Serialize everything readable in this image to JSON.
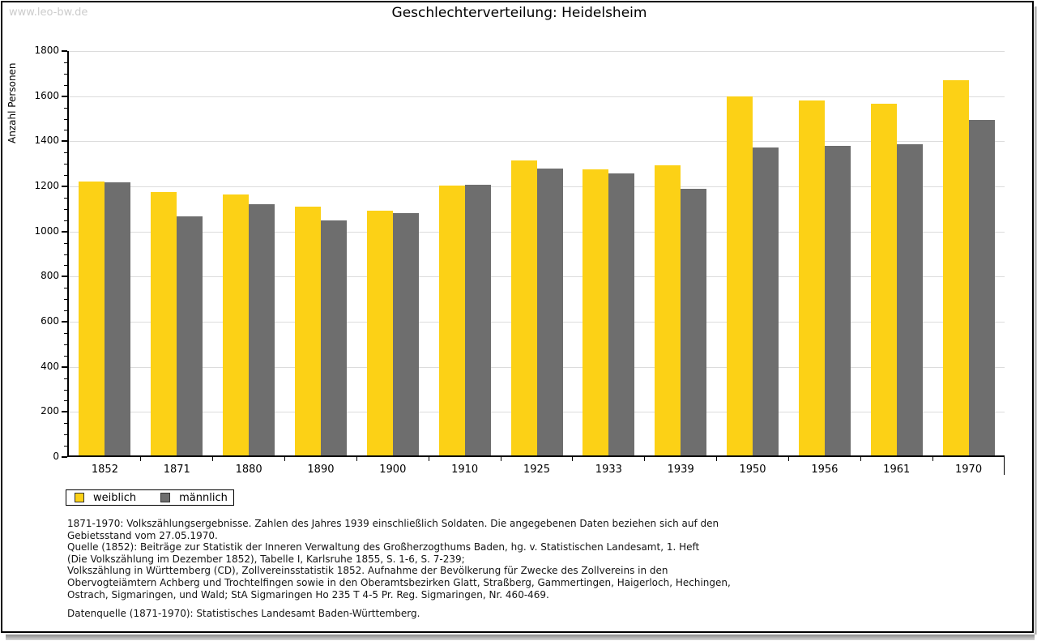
{
  "page": {
    "watermark": "www.leo-bw.de",
    "title": "Geschlechterverteilung: Heidelsheim"
  },
  "chart_data": {
    "type": "bar",
    "title": "Geschlechterverteilung: Heidelsheim",
    "xlabel": "",
    "ylabel": "Anzahl Personen",
    "categories": [
      "1852",
      "1871",
      "1880",
      "1890",
      "1900",
      "1910",
      "1925",
      "1933",
      "1939",
      "1950",
      "1956",
      "1961",
      "1970"
    ],
    "series": [
      {
        "name": "weiblich",
        "color": "#fcd116",
        "values": [
          1215,
          1168,
          1156,
          1103,
          1085,
          1197,
          1307,
          1267,
          1285,
          1590,
          1573,
          1560,
          1665
        ]
      },
      {
        "name": "männlich",
        "color": "#6e6e6e",
        "values": [
          1211,
          1061,
          1114,
          1042,
          1076,
          1201,
          1272,
          1251,
          1183,
          1365,
          1372,
          1379,
          1488
        ]
      }
    ],
    "ylim": [
      0,
      1800
    ],
    "ytick_interval": 200,
    "y_minor_tick_interval": 50,
    "grid": true,
    "legend_position": "bottom-left",
    "colors": {
      "grid": "#dcdcdc",
      "axis": "#000000",
      "watermark": "#cccccc"
    }
  },
  "footer": {
    "lines": [
      "1871-1970: Volkszählungsergebnisse. Zahlen des Jahres 1939 einschließlich Soldaten. Die angegebenen Daten beziehen sich auf den",
      "Gebietsstand vom 27.05.1970.",
      "Quelle (1852): Beiträge zur Statistik der Inneren Verwaltung des Großherzogthums Baden, hg. v. Statistischen Landesamt, 1. Heft",
      "(Die Volkszählung im Dezember 1852), Tabelle I, Karlsruhe 1855, S. 1-6, S. 7-239;",
      "Volkszählung in Württemberg (CD), Zollvereinsstatistik 1852. Aufnahme der Bevölkerung für Zwecke des Zollvereins in den",
      "Obervogteiämtern Achberg und Trochtelfingen sowie in den Oberamtsbezirken Glatt, Straßberg, Gammertingen, Haigerloch, Hechingen,",
      "Ostrach, Sigmaringen, und Wald; StA Sigmaringen Ho 235 T 4-5 Pr. Reg. Sigmaringen, Nr. 460-469."
    ],
    "datasource": "Datenquelle (1871-1970): Statistisches Landesamt Baden-Württemberg."
  }
}
